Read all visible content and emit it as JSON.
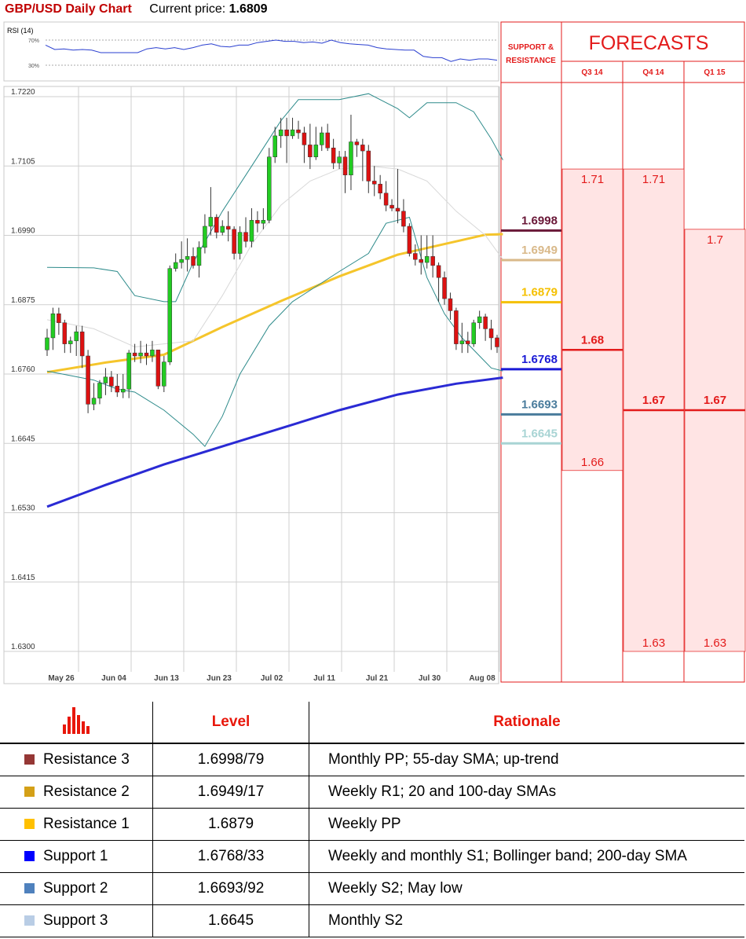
{
  "header": {
    "title": "GBP/USD Daily Chart",
    "current_price_label": "Current price:",
    "current_price": "1.6809"
  },
  "rsi": {
    "label": "RSI (14)",
    "levels": [
      "70%",
      "30%"
    ]
  },
  "sr_header": {
    "line1": "SUPPORT &",
    "line2": "RESISTANCE"
  },
  "forecasts": {
    "title": "FORECASTS",
    "quarters": [
      "Q3 14",
      "Q4 14",
      "Q1 15"
    ],
    "bands": [
      {
        "quarter": "Q3 14",
        "high": "1.71",
        "mid": "1.68",
        "low": "1.66"
      },
      {
        "quarter": "Q4 14",
        "high": "1.71",
        "mid": "1.67",
        "low": "1.63"
      },
      {
        "quarter": "Q1 15",
        "high": "1.7",
        "mid": "1.67",
        "low": "1.63"
      }
    ]
  },
  "table": {
    "headers": [
      "Level",
      "Rationale"
    ],
    "rows": [
      {
        "name": "Resistance 3",
        "level": "1.6998/79",
        "rationale": "Monthly PP; 55-day SMA; up-trend",
        "color": "#953735"
      },
      {
        "name": "Resistance 2",
        "level": "1.6949/17",
        "rationale": "Weekly R1; 20 and 100-day SMAs",
        "color": "#d4a017"
      },
      {
        "name": "Resistance 1",
        "level": "1.6879",
        "rationale": "Weekly PP",
        "color": "#ffc000"
      },
      {
        "name": "Support 1",
        "level": "1.6768/33",
        "rationale": "Weekly and monthly S1; Bollinger band; 200-day SMA",
        "color": "#0000ff"
      },
      {
        "name": "Support 2",
        "level": "1.6693/92",
        "rationale": "Weekly S2; May low",
        "color": "#4f81bd"
      },
      {
        "name": "Support 3",
        "level": "1.6645",
        "rationale": "Monthly S2",
        "color": "#b9cde5"
      }
    ]
  },
  "chart_data": {
    "type": "candlestick",
    "title": "GBP/USD Daily Chart",
    "x_tick_labels": [
      "May 26",
      "Jun 04",
      "Jun 13",
      "Jun 23",
      "Jul 02",
      "Jul 11",
      "Jul 21",
      "Jul 30",
      "Aug 08"
    ],
    "y_tick_labels": [
      "1.7220",
      "1.7105",
      "1.6990",
      "1.6875",
      "1.6760",
      "1.6645",
      "1.6530",
      "1.6415",
      "1.6300"
    ],
    "ylim": [
      1.63,
      1.722
    ],
    "grid": true,
    "candles": [
      [
        1.68,
        1.682,
        1.679,
        1.6835
      ],
      [
        1.682,
        1.686,
        1.68,
        1.687
      ],
      [
        1.686,
        1.6845,
        1.6825,
        1.687
      ],
      [
        1.6845,
        1.681,
        1.6795,
        1.685
      ],
      [
        1.681,
        1.6815,
        1.6795,
        1.6822
      ],
      [
        1.6815,
        1.683,
        1.679,
        1.684
      ],
      [
        1.683,
        1.679,
        1.677,
        1.684
      ],
      [
        1.679,
        1.671,
        1.6695,
        1.68
      ],
      [
        1.671,
        1.672,
        1.67,
        1.6745
      ],
      [
        1.672,
        1.6745,
        1.671,
        1.675
      ],
      [
        1.6745,
        1.6755,
        1.6725,
        1.677
      ],
      [
        1.6755,
        1.674,
        1.673,
        1.6765
      ],
      [
        1.674,
        1.673,
        1.6722,
        1.676
      ],
      [
        1.673,
        1.6735,
        1.672,
        1.676
      ],
      [
        1.6735,
        1.6795,
        1.672,
        1.68
      ],
      [
        1.6795,
        1.679,
        1.678,
        1.681
      ],
      [
        1.679,
        1.6795,
        1.6778,
        1.6815
      ],
      [
        1.6795,
        1.679,
        1.6775,
        1.681
      ],
      [
        1.679,
        1.68,
        1.678,
        1.6815
      ],
      [
        1.68,
        1.674,
        1.6735,
        1.68
      ],
      [
        1.674,
        1.678,
        1.673,
        1.679
      ],
      [
        1.678,
        1.6935,
        1.6775,
        1.694
      ],
      [
        1.6935,
        1.6945,
        1.693,
        1.696
      ],
      [
        1.6945,
        1.695,
        1.6935,
        1.698
      ],
      [
        1.695,
        1.6955,
        1.693,
        1.6985
      ],
      [
        1.6955,
        1.694,
        1.6935,
        1.697
      ],
      [
        1.694,
        1.697,
        1.692,
        1.698
      ],
      [
        1.697,
        1.7005,
        1.696,
        1.7025
      ],
      [
        1.7005,
        1.702,
        1.699,
        1.707
      ],
      [
        1.702,
        1.6995,
        1.6985,
        1.7025
      ],
      [
        1.6995,
        1.7005,
        1.699,
        1.7015
      ],
      [
        1.7005,
        1.7,
        1.698,
        1.703
      ],
      [
        1.7,
        1.696,
        1.695,
        1.7005
      ],
      [
        1.696,
        1.6995,
        1.695,
        1.7005
      ],
      [
        1.6995,
        1.698,
        1.697,
        1.702
      ],
      [
        1.698,
        1.7015,
        1.697,
        1.7035
      ],
      [
        1.7015,
        1.701,
        1.6995,
        1.703
      ],
      [
        1.701,
        1.7015,
        1.7,
        1.7035
      ],
      [
        1.7015,
        1.712,
        1.701,
        1.7135
      ],
      [
        1.712,
        1.7155,
        1.711,
        1.717
      ],
      [
        1.7155,
        1.7165,
        1.7135,
        1.7185
      ],
      [
        1.7165,
        1.7155,
        1.711,
        1.7185
      ],
      [
        1.7155,
        1.7165,
        1.715,
        1.7185
      ],
      [
        1.7165,
        1.716,
        1.715,
        1.718
      ],
      [
        1.716,
        1.714,
        1.711,
        1.717
      ],
      [
        1.714,
        1.712,
        1.71,
        1.7175
      ],
      [
        1.712,
        1.714,
        1.7115,
        1.717
      ],
      [
        1.714,
        1.716,
        1.713,
        1.717
      ],
      [
        1.716,
        1.7135,
        1.713,
        1.7175
      ],
      [
        1.7135,
        1.711,
        1.71,
        1.715
      ],
      [
        1.711,
        1.712,
        1.71,
        1.713
      ],
      [
        1.712,
        1.709,
        1.706,
        1.713
      ],
      [
        1.709,
        1.7145,
        1.7065,
        1.719
      ],
      [
        1.7145,
        1.714,
        1.712,
        1.715
      ],
      [
        1.714,
        1.713,
        1.708,
        1.715
      ],
      [
        1.713,
        1.708,
        1.706,
        1.714
      ],
      [
        1.708,
        1.7075,
        1.7055,
        1.7105
      ],
      [
        1.7075,
        1.706,
        1.705,
        1.709
      ],
      [
        1.706,
        1.704,
        1.703,
        1.708
      ],
      [
        1.704,
        1.7035,
        1.703,
        1.705
      ],
      [
        1.7035,
        1.703,
        1.701,
        1.71
      ],
      [
        1.703,
        1.7005,
        1.6995,
        1.705
      ],
      [
        1.7005,
        1.696,
        1.6955,
        1.701
      ],
      [
        1.696,
        1.695,
        1.694,
        1.6975
      ],
      [
        1.695,
        1.6945,
        1.6925,
        1.699
      ],
      [
        1.6945,
        1.6955,
        1.6935,
        1.699
      ],
      [
        1.6955,
        1.694,
        1.692,
        1.699
      ],
      [
        1.694,
        1.692,
        1.688,
        1.6945
      ],
      [
        1.692,
        1.6885,
        1.6875,
        1.693
      ],
      [
        1.6885,
        1.6865,
        1.685,
        1.6895
      ],
      [
        1.6865,
        1.681,
        1.68,
        1.687
      ],
      [
        1.681,
        1.6815,
        1.6795,
        1.6845
      ],
      [
        1.6815,
        1.681,
        1.6795,
        1.683
      ],
      [
        1.681,
        1.6845,
        1.6805,
        1.685
      ],
      [
        1.6845,
        1.6855,
        1.6835,
        1.6865
      ],
      [
        1.6855,
        1.6835,
        1.6815,
        1.686
      ],
      [
        1.6835,
        1.682,
        1.68,
        1.685
      ],
      [
        1.682,
        1.6805,
        1.6795,
        1.6825
      ]
    ],
    "series": [
      {
        "name": "Moving average (yellow)",
        "color": "#f5c52b",
        "values": [
          [
            0,
            1.6763
          ],
          [
            10,
            1.6779
          ],
          [
            20,
            1.6792
          ],
          [
            30,
            1.6838
          ],
          [
            40,
            1.6881
          ],
          [
            50,
            1.6922
          ],
          [
            60,
            1.6958
          ],
          [
            70,
            1.698
          ],
          [
            75,
            1.6991
          ],
          [
            78,
            1.6992
          ]
        ]
      },
      {
        "name": "Moving average (blue)",
        "color": "#2a2ad4",
        "values": [
          [
            0,
            1.654
          ],
          [
            10,
            1.6576
          ],
          [
            20,
            1.661
          ],
          [
            30,
            1.664
          ],
          [
            40,
            1.667
          ],
          [
            50,
            1.67
          ],
          [
            60,
            1.6726
          ],
          [
            70,
            1.6744
          ],
          [
            78,
            1.6754
          ]
        ]
      },
      {
        "name": "Upper Bollinger band",
        "color": "#2e8b8b",
        "values": [
          [
            0,
            1.6937
          ],
          [
            8,
            1.6936
          ],
          [
            12,
            1.693
          ],
          [
            15,
            1.689
          ],
          [
            20,
            1.688
          ],
          [
            22,
            1.688
          ],
          [
            25,
            1.6945
          ],
          [
            30,
            1.703
          ],
          [
            35,
            1.7105
          ],
          [
            40,
            1.718
          ],
          [
            43,
            1.7215
          ],
          [
            50,
            1.7215
          ],
          [
            55,
            1.7225
          ],
          [
            60,
            1.72
          ],
          [
            62,
            1.7185
          ],
          [
            65,
            1.721
          ],
          [
            70,
            1.721
          ],
          [
            73,
            1.7195
          ],
          [
            76,
            1.715
          ],
          [
            78,
            1.7115
          ]
        ]
      },
      {
        "name": "Lower Bollinger band",
        "color": "#2e8b8b",
        "values": [
          [
            0,
            1.6765
          ],
          [
            8,
            1.675
          ],
          [
            12,
            1.6735
          ],
          [
            15,
            1.673
          ],
          [
            20,
            1.67
          ],
          [
            25,
            1.666
          ],
          [
            27,
            1.664
          ],
          [
            30,
            1.669
          ],
          [
            33,
            1.676
          ],
          [
            38,
            1.684
          ],
          [
            42,
            1.688
          ],
          [
            50,
            1.693
          ],
          [
            55,
            1.696
          ],
          [
            58,
            1.701
          ],
          [
            62,
            1.702
          ],
          [
            65,
            1.692
          ],
          [
            68,
            1.686
          ],
          [
            71,
            1.682
          ],
          [
            74,
            1.679
          ],
          [
            76,
            1.677
          ],
          [
            78,
            1.6765
          ]
        ]
      },
      {
        "name": "Middle band",
        "color": "#d8d8d8",
        "values": [
          [
            0,
            1.685
          ],
          [
            8,
            1.6835
          ],
          [
            15,
            1.6805
          ],
          [
            25,
            1.6815
          ],
          [
            30,
            1.689
          ],
          [
            35,
            1.6975
          ],
          [
            40,
            1.704
          ],
          [
            45,
            1.708
          ],
          [
            50,
            1.71
          ],
          [
            55,
            1.7105
          ],
          [
            60,
            1.71
          ],
          [
            65,
            1.708
          ],
          [
            70,
            1.703
          ],
          [
            75,
            1.699
          ],
          [
            78,
            1.695
          ]
        ]
      }
    ],
    "rsi_values": [
      62,
      55,
      56,
      54,
      55,
      54,
      50,
      50,
      50,
      50,
      50,
      56,
      58,
      56,
      58,
      55,
      58,
      62,
      64,
      60,
      59,
      62,
      62,
      66,
      68,
      70,
      68,
      68,
      66,
      67,
      65,
      70,
      66,
      64,
      63,
      62,
      58,
      56,
      55,
      54,
      54,
      44,
      42,
      42,
      36,
      40,
      38,
      40,
      40,
      38
    ],
    "support_resistance": [
      {
        "label": "1.6998",
        "value": 1.6998,
        "color": "#6a1838"
      },
      {
        "label": "1.6949",
        "value": 1.6949,
        "color": "#d9b98a"
      },
      {
        "label": "1.6879",
        "value": 1.6879,
        "color": "#f5c000"
      },
      {
        "label": "1.6768",
        "value": 1.6768,
        "color": "#1a1ad6"
      },
      {
        "label": "1.6693",
        "value": 1.6693,
        "color": "#4a7c9c"
      },
      {
        "label": "1.6645",
        "value": 1.6645,
        "color": "#a8d4d4"
      }
    ],
    "forecast_bands": [
      {
        "quarter": "Q3 14",
        "high": 1.71,
        "mid": 1.68,
        "low": 1.66
      },
      {
        "quarter": "Q4 14",
        "high": 1.71,
        "mid": 1.67,
        "low": 1.63
      },
      {
        "quarter": "Q1 15",
        "high": 1.7,
        "mid": 1.67,
        "low": 1.63
      }
    ]
  }
}
